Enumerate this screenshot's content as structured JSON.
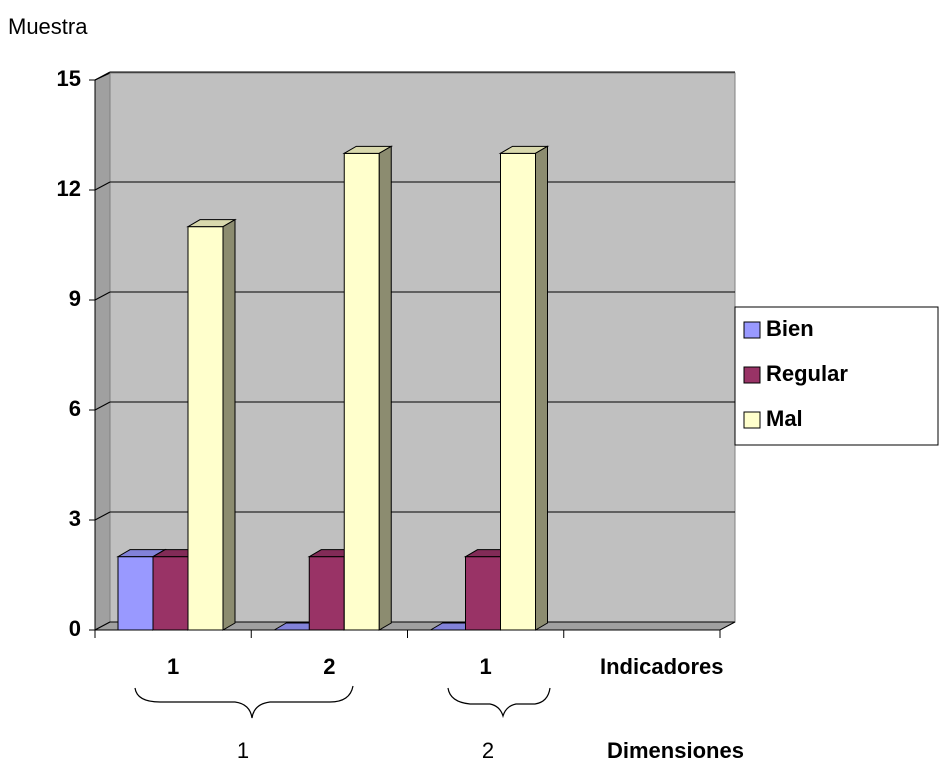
{
  "chart_data": {
    "type": "bar3d",
    "y_label": "Muestra",
    "x_label": "Indicadores",
    "dimension_label": "Dimensiones",
    "dimensions": [
      "1",
      "2"
    ],
    "categories": [
      "1",
      "2",
      "1",
      null
    ],
    "series": [
      {
        "name": "Bien",
        "color": "#9999ff",
        "values": [
          2,
          0,
          0,
          null
        ]
      },
      {
        "name": "Regular",
        "color": "#993366",
        "values": [
          2,
          2,
          2,
          null
        ]
      },
      {
        "name": "Mal",
        "color": "#ffffcc",
        "values": [
          11,
          13,
          13,
          null
        ]
      }
    ],
    "ylim": [
      0,
      15
    ],
    "yticks": [
      0,
      3,
      6,
      9,
      12,
      15
    ],
    "grid": true,
    "legend": "right"
  }
}
